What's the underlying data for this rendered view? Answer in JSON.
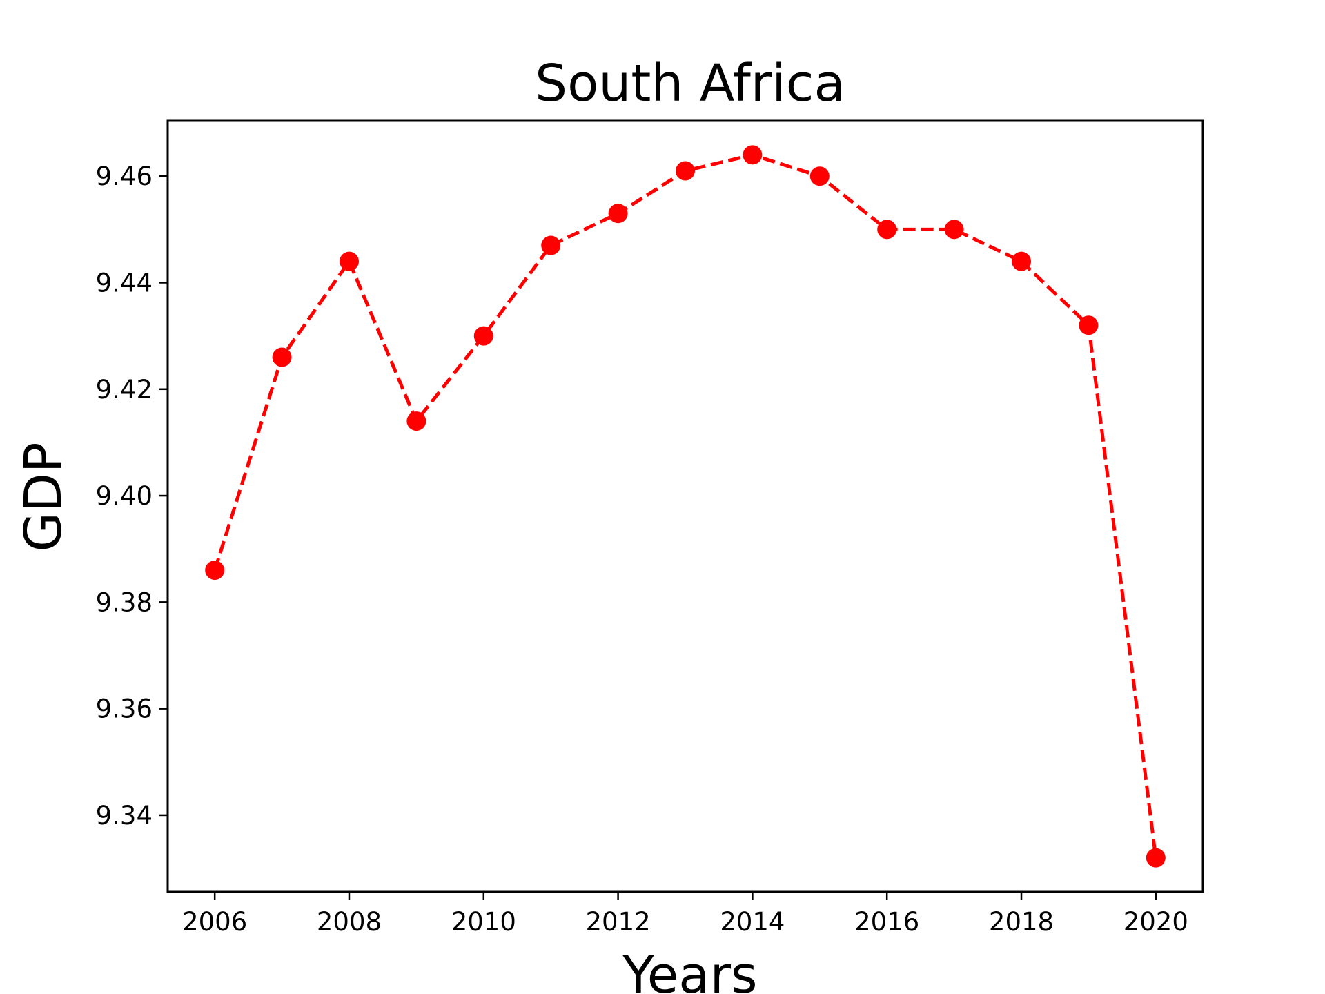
{
  "chart_data": {
    "type": "line",
    "title": "South Africa",
    "xlabel": "Years",
    "ylabel": "GDP",
    "x": [
      2006,
      2007,
      2008,
      2009,
      2010,
      2011,
      2012,
      2013,
      2014,
      2015,
      2016,
      2017,
      2018,
      2019,
      2020
    ],
    "series": [
      {
        "values": [
          9.386,
          9.426,
          9.444,
          9.414,
          9.43,
          9.447,
          9.453,
          9.461,
          9.464,
          9.46,
          9.45,
          9.45,
          9.444,
          9.432,
          9.332
        ],
        "color": "#ff0000",
        "line_style": "dashed",
        "marker": "circle"
      }
    ],
    "xlim": [
      2005.3,
      2020.7
    ],
    "ylim": [
      9.3256,
      9.4704
    ],
    "xticks": [
      "2006",
      "2008",
      "2010",
      "2012",
      "2014",
      "2016",
      "2018",
      "2020"
    ],
    "yticks": [
      "9.34",
      "9.36",
      "9.38",
      "9.40",
      "9.42",
      "9.44",
      "9.46"
    ],
    "grid": false,
    "legend": "none"
  }
}
